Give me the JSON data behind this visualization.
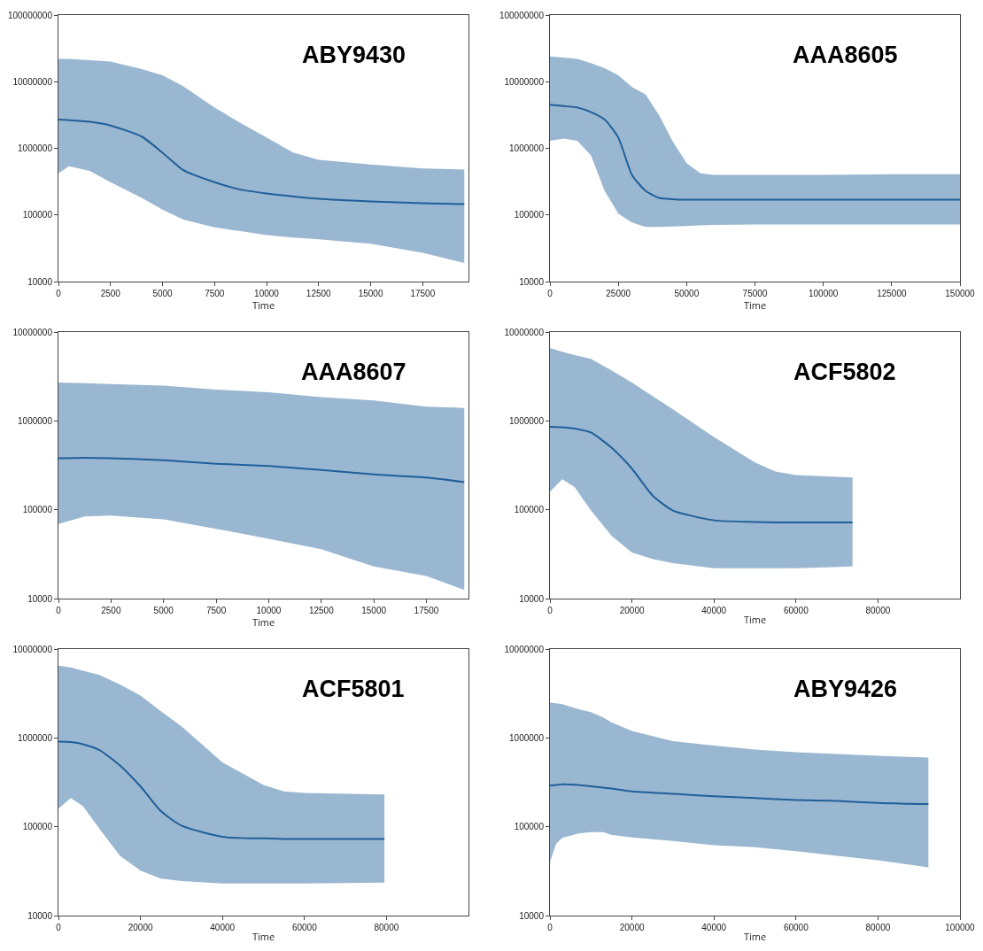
{
  "chart_data": [
    {
      "type": "line",
      "title": "ABY9430",
      "xlabel": "Time",
      "log": "y",
      "grid": false,
      "marker": "none",
      "line_style": "solid",
      "xlim": [
        0,
        19700
      ],
      "xticks": [
        0,
        2500,
        5000,
        7500,
        10000,
        12500,
        15000,
        17500
      ],
      "ylim": [
        10000,
        100000000
      ],
      "yticks": [
        10000,
        100000,
        1000000,
        10000000,
        100000000
      ],
      "series": [
        {
          "color": "#1f5f99",
          "x": [
            0,
            500,
            1500,
            2500,
            4000,
            5000,
            6000,
            7500,
            8750,
            10000,
            11250,
            12500,
            15000,
            17500,
            19500
          ],
          "values": [
            2700000,
            2650000,
            2500000,
            2200000,
            1500000,
            860000,
            470000,
            310000,
            240000,
            210000,
            190000,
            175000,
            160000,
            150000,
            145000
          ],
          "upper": [
            22000000,
            22000000,
            21000000,
            20000000,
            15500000,
            12500000,
            8500000,
            4100000,
            2400000,
            1450000,
            870000,
            670000,
            570000,
            500000,
            480000
          ],
          "lower": [
            420000,
            540000,
            460000,
            310000,
            180000,
            120000,
            85000,
            65000,
            57000,
            50000,
            46000,
            43000,
            37000,
            27000,
            19000
          ]
        }
      ]
    },
    {
      "type": "line",
      "title": "AAA8605",
      "xlabel": "Time",
      "log": "y",
      "grid": false,
      "marker": "none",
      "line_style": "solid",
      "xlim": [
        0,
        150000
      ],
      "xticks": [
        0,
        25000,
        50000,
        75000,
        100000,
        125000,
        150000
      ],
      "ylim": [
        10000,
        100000000
      ],
      "yticks": [
        10000,
        100000,
        1000000,
        10000000,
        100000000
      ],
      "series": [
        {
          "color": "#1f5f99",
          "x": [
            0,
            5000,
            10000,
            15000,
            20000,
            25000,
            30000,
            35000,
            40000,
            45000,
            50000,
            55000,
            60000,
            75000,
            100000,
            125000,
            150000
          ],
          "values": [
            4500000,
            4300000,
            4100000,
            3500000,
            2700000,
            1450000,
            400000,
            230000,
            180000,
            172000,
            170000,
            170000,
            170000,
            170000,
            170000,
            170000,
            170000
          ],
          "upper": [
            24000000,
            23000000,
            22000000,
            19000000,
            16000000,
            12500000,
            8300000,
            6400000,
            3100000,
            1250000,
            600000,
            420000,
            400000,
            400000,
            400000,
            410000,
            410000
          ],
          "lower": [
            1300000,
            1400000,
            1300000,
            780000,
            230000,
            105000,
            77000,
            66000,
            66000,
            67000,
            68000,
            70000,
            71000,
            72000,
            72000,
            72000,
            72000
          ]
        }
      ]
    },
    {
      "type": "line",
      "title": "AAA8607",
      "xlabel": "Time",
      "log": "y",
      "grid": false,
      "marker": "none",
      "line_style": "solid",
      "xlim": [
        0,
        19500
      ],
      "xticks": [
        0,
        2500,
        5000,
        7500,
        10000,
        12500,
        15000,
        17500
      ],
      "ylim": [
        10000,
        10000000
      ],
      "yticks": [
        10000,
        100000,
        1000000,
        10000000
      ],
      "series": [
        {
          "color": "#1f5f99",
          "x": [
            0,
            1250,
            2500,
            5000,
            7500,
            10000,
            12500,
            15000,
            17500,
            19300
          ],
          "values": [
            380000,
            385000,
            380000,
            360000,
            330000,
            310000,
            280000,
            250000,
            230000,
            205000
          ],
          "upper": [
            2700000,
            2650000,
            2600000,
            2500000,
            2250000,
            2100000,
            1850000,
            1700000,
            1450000,
            1400000
          ],
          "lower": [
            69000,
            84000,
            86000,
            78000,
            61000,
            47000,
            36000,
            23000,
            18000,
            12500
          ]
        }
      ]
    },
    {
      "type": "line",
      "title": "ACF5802",
      "xlabel": "Time",
      "log": "y",
      "grid": false,
      "marker": "none",
      "line_style": "solid",
      "xlim": [
        0,
        100000
      ],
      "xticks": [
        0,
        20000,
        40000,
        60000,
        80000
      ],
      "ylim": [
        10000,
        10000000
      ],
      "yticks": [
        10000,
        100000,
        1000000,
        10000000
      ],
      "series": [
        {
          "color": "#1f5f99",
          "x": [
            0,
            3000,
            6000,
            10000,
            15000,
            20000,
            25000,
            30000,
            40000,
            50000,
            55000,
            60000,
            73800
          ],
          "values": [
            860000,
            850000,
            820000,
            740000,
            500000,
            290000,
            145000,
            98000,
            76000,
            73000,
            72000,
            72000,
            72000
          ],
          "upper": [
            6600000,
            6000000,
            5500000,
            5000000,
            3700000,
            2700000,
            1900000,
            1350000,
            660000,
            340000,
            270000,
            245000,
            230000
          ],
          "lower": [
            160000,
            220000,
            180000,
            98000,
            51000,
            33000,
            28000,
            25000,
            22000,
            22000,
            22000,
            22000,
            23000
          ]
        }
      ]
    },
    {
      "type": "line",
      "title": "ACF5801",
      "xlabel": "Time",
      "log": "y",
      "grid": false,
      "marker": "none",
      "line_style": "solid",
      "xlim": [
        0,
        100000
      ],
      "xticks": [
        0,
        20000,
        40000,
        60000,
        80000
      ],
      "ylim": [
        10000,
        10000000
      ],
      "yticks": [
        10000,
        100000,
        1000000,
        10000000
      ],
      "series": [
        {
          "color": "#1f5f99",
          "x": [
            0,
            3000,
            6000,
            10000,
            15000,
            20000,
            25000,
            30000,
            40000,
            50000,
            55000,
            60000,
            79500
          ],
          "values": [
            910000,
            900000,
            850000,
            730000,
            490000,
            285000,
            150000,
            103000,
            77000,
            74000,
            73000,
            73000,
            73000
          ],
          "upper": [
            6500000,
            6200000,
            5700000,
            5100000,
            4000000,
            3000000,
            2000000,
            1350000,
            530000,
            295000,
            250000,
            240000,
            230000
          ],
          "lower": [
            160000,
            210000,
            170000,
            95000,
            47000,
            32000,
            26000,
            24500,
            23000,
            23000,
            23000,
            23000,
            23500
          ]
        }
      ]
    },
    {
      "type": "line",
      "title": "ABY9426",
      "xlabel": "Time",
      "log": "y",
      "grid": false,
      "marker": "none",
      "line_style": "solid",
      "xlim": [
        0,
        100000
      ],
      "xticks": [
        0,
        20000,
        40000,
        60000,
        80000,
        100000
      ],
      "ylim": [
        10000,
        10000000
      ],
      "yticks": [
        10000,
        100000,
        1000000,
        10000000
      ],
      "series": [
        {
          "color": "#1f5f99",
          "x": [
            0,
            1500,
            3000,
            7000,
            10000,
            13000,
            15000,
            20000,
            30000,
            40000,
            50000,
            60000,
            70000,
            80000,
            92300
          ],
          "values": [
            290000,
            295000,
            300000,
            295000,
            285000,
            275000,
            270000,
            250000,
            235000,
            220000,
            210000,
            200000,
            195000,
            185000,
            180000
          ],
          "upper": [
            2500000,
            2450000,
            2400000,
            2100000,
            1950000,
            1700000,
            1500000,
            1200000,
            920000,
            820000,
            740000,
            690000,
            660000,
            630000,
            600000
          ],
          "lower": [
            40000,
            64000,
            75000,
            84000,
            87000,
            87000,
            81000,
            76000,
            69000,
            62000,
            59000,
            53000,
            47000,
            42000,
            35000
          ]
        }
      ]
    }
  ]
}
